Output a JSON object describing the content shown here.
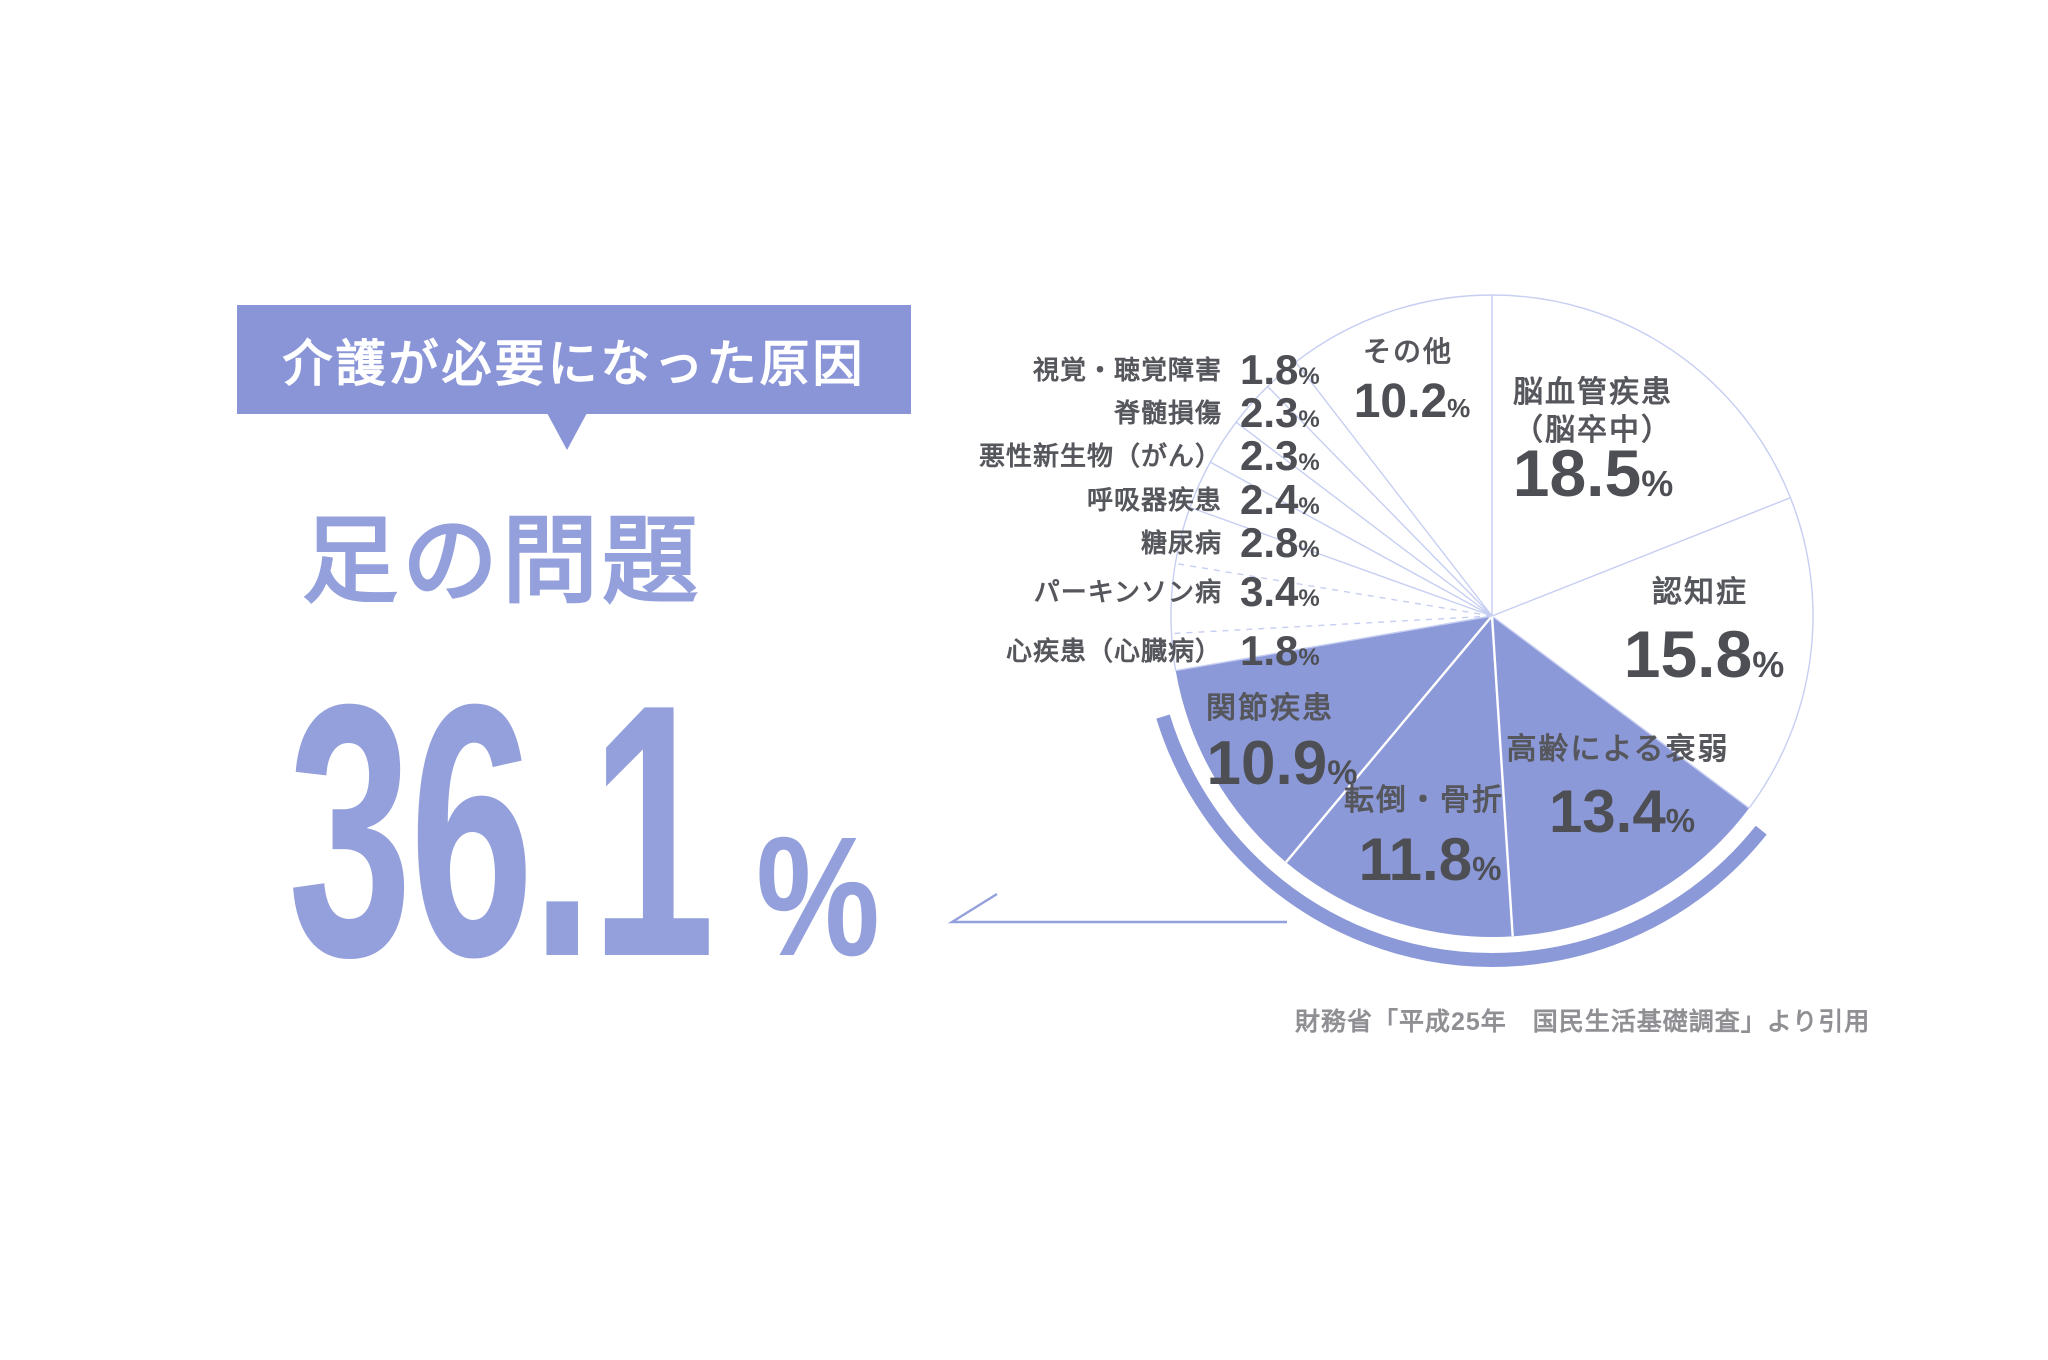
{
  "header_badge": {
    "label": "介護が必要になった原因"
  },
  "highlight": {
    "title": "足の問題",
    "value_display": "36.1",
    "percent_sign": "%"
  },
  "source_note": {
    "text": "財務省「平成25年　国民生活基礎調査」より引用"
  },
  "colors": {
    "accent": "#8c99d8",
    "accent_light": "#94a0dc",
    "badge_bg": "#8a95d8",
    "badge_text": "#ffffff",
    "pie_outline": "#c6cef2",
    "number_dark": "#4e4f54",
    "label_gray": "#56575c",
    "source_gray": "#8f8f94",
    "background": "#ffffff"
  },
  "chart_data": {
    "type": "pie",
    "unit": "%",
    "order": "clockwise-from-top",
    "percent_sign": "%",
    "legend_position": "labels-on-chart",
    "highlight_total": {
      "label": "足の問題",
      "value": 36.1
    },
    "slices": [
      {
        "label": "脳血管疾患（脳卒中）",
        "label_lines": [
          "脳血管疾患",
          "（脳卒中）"
        ],
        "value": 18.5,
        "display": "18.5",
        "highlighted": false,
        "label_placement": "inside"
      },
      {
        "label": "認知症",
        "value": 15.8,
        "display": "15.8",
        "highlighted": false,
        "label_placement": "inside"
      },
      {
        "label": "高齢による衰弱",
        "value": 13.4,
        "display": "13.4",
        "highlighted": true,
        "label_placement": "inside"
      },
      {
        "label": "転倒・骨折",
        "value": 11.8,
        "display": "11.8",
        "highlighted": true,
        "label_placement": "inside"
      },
      {
        "label": "関節疾患",
        "value": 10.9,
        "display": "10.9",
        "highlighted": true,
        "label_placement": "inside"
      },
      {
        "label": "心疾患（心臓病）",
        "value": 1.8,
        "display": "1.8",
        "highlighted": false,
        "label_placement": "side"
      },
      {
        "label": "パーキンソン病",
        "value": 3.4,
        "display": "3.4",
        "highlighted": false,
        "label_placement": "side"
      },
      {
        "label": "糖尿病",
        "value": 2.8,
        "display": "2.8",
        "highlighted": false,
        "label_placement": "side"
      },
      {
        "label": "呼吸器疾患",
        "value": 2.4,
        "display": "2.4",
        "highlighted": false,
        "label_placement": "side"
      },
      {
        "label": "悪性新生物（がん）",
        "value": 2.3,
        "display": "2.3",
        "highlighted": false,
        "label_placement": "side"
      },
      {
        "label": "脊髄損傷",
        "value": 2.3,
        "display": "2.3",
        "highlighted": false,
        "label_placement": "side"
      },
      {
        "label": "視覚・聴覚障害",
        "value": 1.8,
        "display": "1.8",
        "highlighted": false,
        "label_placement": "side"
      },
      {
        "label": "その他",
        "value": 10.2,
        "display": "10.2",
        "highlighted": false,
        "label_placement": "inside"
      }
    ]
  }
}
